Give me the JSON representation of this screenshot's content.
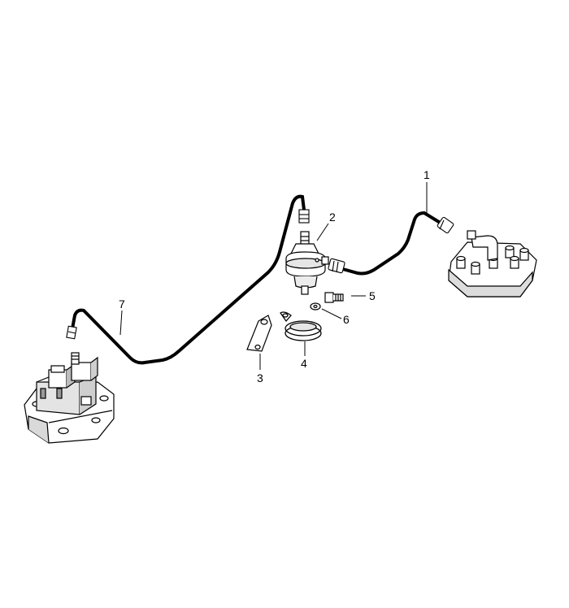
{
  "callouts": [
    {
      "id": "1",
      "label": "1"
    },
    {
      "id": "2",
      "label": "2"
    },
    {
      "id": "3",
      "label": "3"
    },
    {
      "id": "4",
      "label": "4"
    },
    {
      "id": "5",
      "label": "5"
    },
    {
      "id": "6",
      "label": "6"
    },
    {
      "id": "7",
      "label": "7"
    }
  ],
  "colors": {
    "line": "#000000",
    "paper": "#ffffff",
    "shade": "#d0d0d0"
  }
}
